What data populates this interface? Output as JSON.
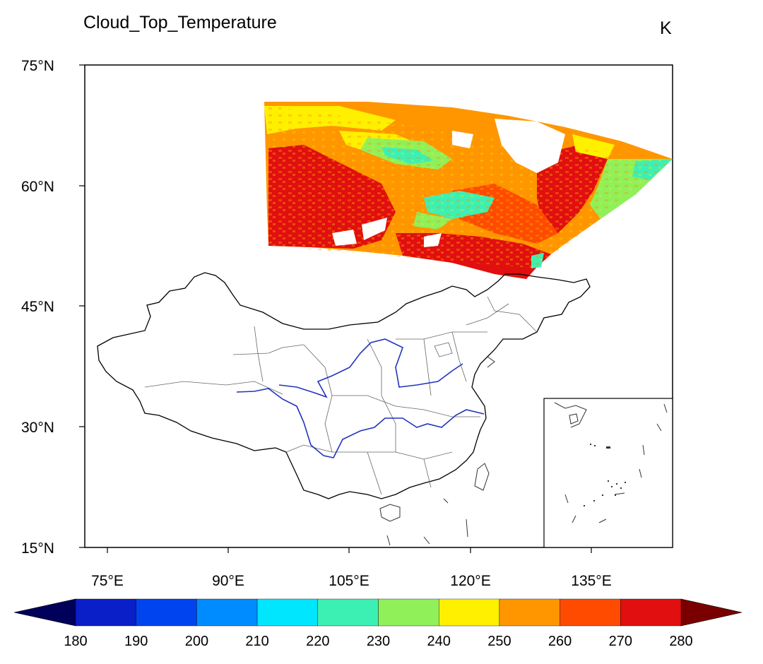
{
  "title": "Cloud_Top_Temperature",
  "units": "K",
  "lat_ticks": [
    "75°N",
    "60°N",
    "45°N",
    "30°N",
    "15°N"
  ],
  "lon_ticks": [
    "75°E",
    "90°E",
    "105°E",
    "120°E",
    "135°E"
  ],
  "colorbar": {
    "labels": [
      "180",
      "190",
      "200",
      "210",
      "220",
      "230",
      "240",
      "250",
      "260",
      "270",
      "280"
    ],
    "under_color": "#00005a",
    "over_color": "#7a0000",
    "colors": [
      "#0a1fc8",
      "#0044f0",
      "#008cff",
      "#00e6ff",
      "#3cf0b4",
      "#90f05a",
      "#fff000",
      "#ff9600",
      "#ff4b00",
      "#e10f0f"
    ]
  },
  "map_colors": {
    "boundary": "#000000",
    "province": "#555555",
    "river": "#2233bb",
    "cloud_warm": "#e10f0f",
    "cloud_orange": "#ff9600",
    "cloud_yellow": "#fff000",
    "cloud_cyan": "#3cf0b4",
    "cloud_green": "#90f05a"
  }
}
